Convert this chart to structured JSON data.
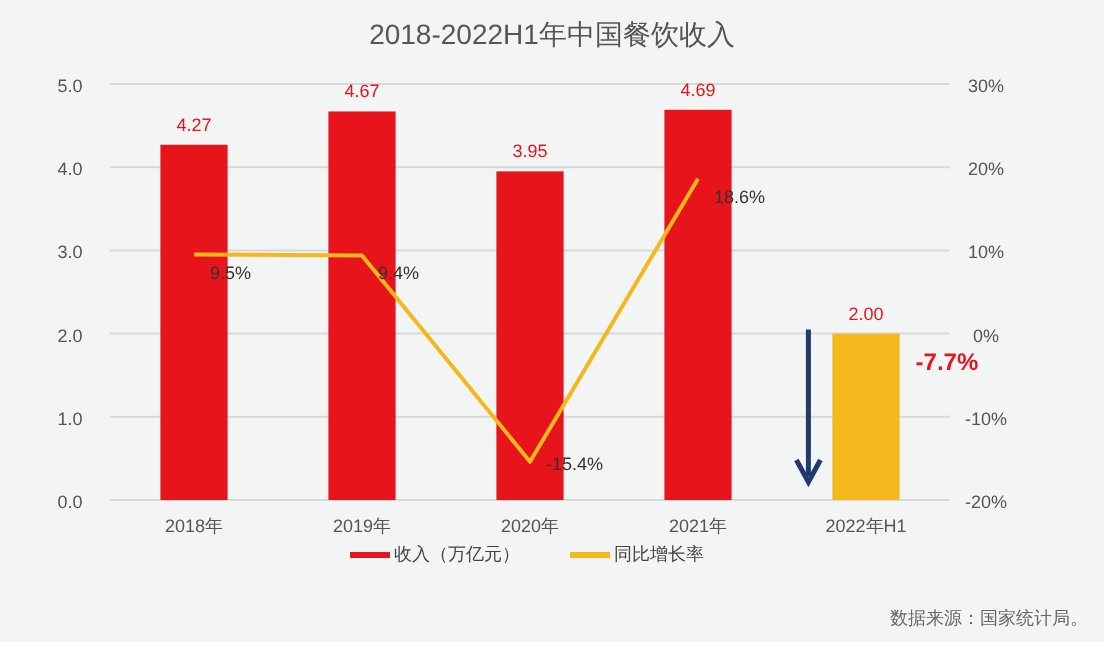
{
  "chart_data": {
    "type": "bar",
    "title": "2018-2022H1年中国餐饮收入",
    "categories": [
      "2018年",
      "2019年",
      "2020年",
      "2021年",
      "2022年H1"
    ],
    "series": [
      {
        "name": "收入（万亿元）",
        "color": "#e8141c",
        "colors": [
          "#e8141c",
          "#e8141c",
          "#e8141c",
          "#e8141c",
          "#f5b81c"
        ],
        "values": [
          4.27,
          4.67,
          3.95,
          4.69,
          2.0
        ],
        "value_labels": [
          "4.27",
          "4.67",
          "3.95",
          "4.69",
          "2.00"
        ]
      },
      {
        "name": "同比增长率",
        "type": "line",
        "axis": "y2",
        "color": "#f5b81c",
        "values": [
          9.5,
          9.4,
          -15.4,
          18.6,
          null
        ],
        "value_labels": [
          "9.5%",
          "9.4%",
          "-15.4%",
          "18.6%",
          null
        ]
      }
    ],
    "ylim": [
      0,
      5
    ],
    "yticks": [
      {
        "value": 0,
        "label": "0.0"
      },
      {
        "value": 1,
        "label": "1.0"
      },
      {
        "value": 2,
        "label": "2.0"
      },
      {
        "value": 3,
        "label": "3.0"
      },
      {
        "value": 4,
        "label": "4.0"
      },
      {
        "value": 5,
        "label": "5.0"
      }
    ],
    "y2lim": [
      -20,
      30
    ],
    "y2ticks": [
      {
        "value": -20,
        "label": "-20%"
      },
      {
        "value": -10,
        "label": "-10%"
      },
      {
        "value": 0,
        "label": "0%"
      },
      {
        "value": 10,
        "label": "10%"
      },
      {
        "value": 20,
        "label": "20%"
      },
      {
        "value": 30,
        "label": "30%"
      }
    ],
    "grid": "y",
    "legend": "bottom",
    "marker": "none",
    "annotations": [
      {
        "text": "-7.7%",
        "x": "2022年H1",
        "y": 2.0
      },
      "数据来源：国家统计局。"
    ]
  }
}
